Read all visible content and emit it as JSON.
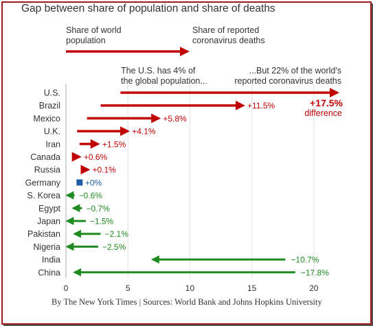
{
  "chart_data": {
    "type": "bar",
    "title": "Gap between share of population and share of deaths",
    "legend": {
      "start_label": [
        "Share of world",
        "population"
      ],
      "end_label": [
        "Share of reported",
        "coronavirus deaths"
      ]
    },
    "annotations": {
      "left": [
        "The U.S. has 4% of",
        "the global population..."
      ],
      "right": [
        "...But 22% of the world's",
        "reported coronavirus deaths"
      ],
      "difference_value": "+17.5%",
      "difference_label": "difference"
    },
    "xlim": [
      0,
      22
    ],
    "xticks": [
      "0",
      "5",
      "10",
      "15",
      "20"
    ],
    "colors": {
      "positive": "#c00000",
      "negative": "#1f8a1f",
      "zero": "#1f5fa8"
    },
    "rows": [
      {
        "country": "U.S.",
        "population_share": 4.4,
        "death_share": 21.9,
        "label": ""
      },
      {
        "country": "Brazil",
        "population_share": 2.8,
        "death_share": 14.3,
        "label": "+11.5%"
      },
      {
        "country": "Mexico",
        "population_share": 1.7,
        "death_share": 7.5,
        "label": "+5.8%"
      },
      {
        "country": "U.K.",
        "population_share": 0.9,
        "death_share": 5.0,
        "label": "+4.1%"
      },
      {
        "country": "Iran",
        "population_share": 1.1,
        "death_share": 2.6,
        "label": "+1.5%"
      },
      {
        "country": "Canada",
        "population_share": 0.5,
        "death_share": 1.1,
        "label": "+0.6%"
      },
      {
        "country": "Russia",
        "population_share": 1.7,
        "death_share": 1.8,
        "label": "+0.1%"
      },
      {
        "country": "Germany",
        "population_share": 1.1,
        "death_share": 1.1,
        "label": "+0%"
      },
      {
        "country": "S. Korea",
        "population_share": 0.7,
        "death_share": 0.1,
        "label": "−0.6%"
      },
      {
        "country": "Egypt",
        "population_share": 1.3,
        "death_share": 0.6,
        "label": "−0.7%"
      },
      {
        "country": "Japan",
        "population_share": 1.6,
        "death_share": 0.1,
        "label": "−1.5%"
      },
      {
        "country": "Pakistan",
        "population_share": 2.8,
        "death_share": 0.7,
        "label": "−2.1%"
      },
      {
        "country": "Nigeria",
        "population_share": 2.6,
        "death_share": 0.1,
        "label": "−2.5%"
      },
      {
        "country": "India",
        "population_share": 17.7,
        "death_share": 7.0,
        "label": "−10.7%"
      },
      {
        "country": "China",
        "population_share": 18.5,
        "death_share": 0.7,
        "label": "−17.8%"
      }
    ]
  },
  "source": "By The New York Times | Sources: World Bank and Johns Hopkins University"
}
